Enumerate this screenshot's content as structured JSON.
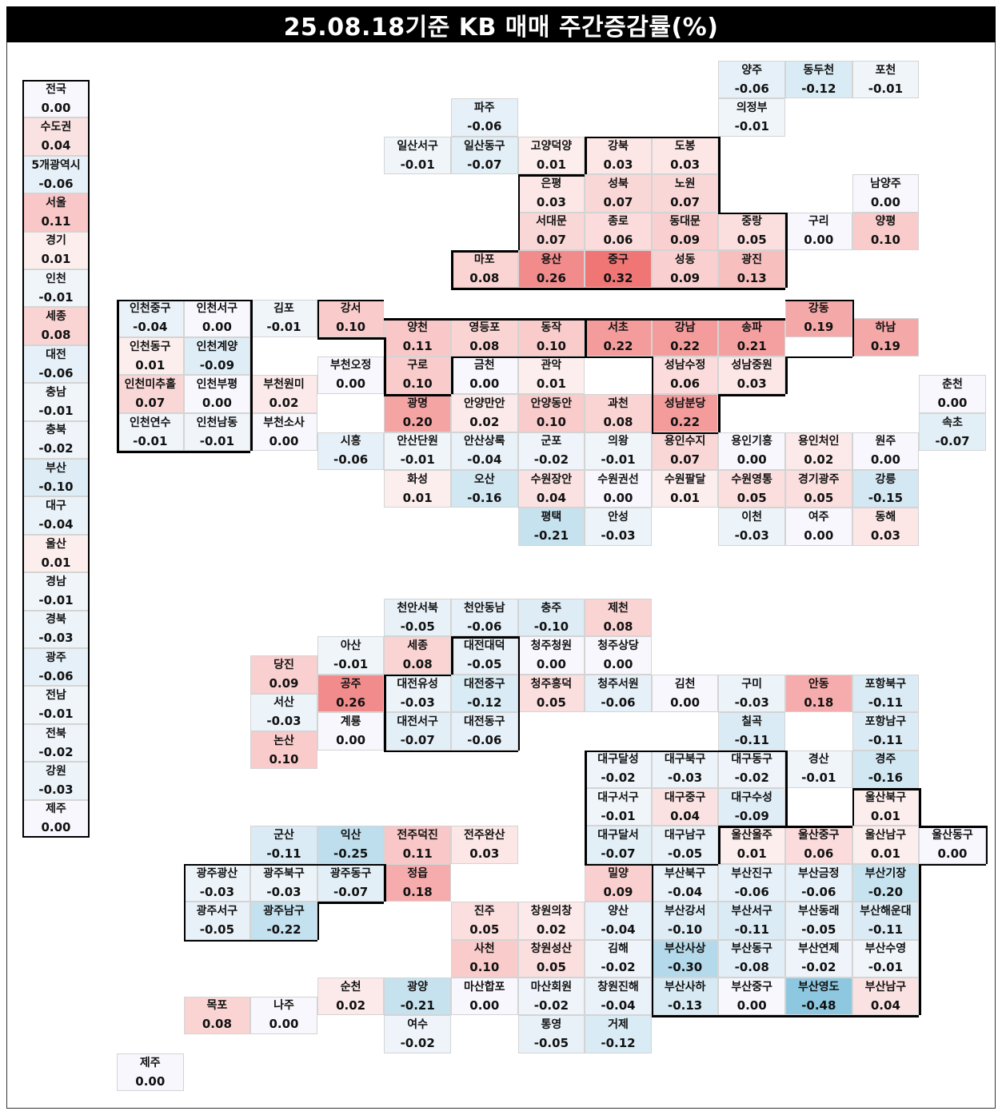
{
  "title": "25.08.18기준 KB 매매 주간증감률(%)",
  "colors": {
    "neg_strong": "#8ec8e0",
    "pos_strong": "#f07575",
    "neutral": "#f7f7fd"
  },
  "chart_data": {
    "type": "heatmap",
    "title": "25.08.18기준 KB 매매 주간증감률(%)",
    "summary": [
      {
        "name": "전국",
        "value": 0.0
      },
      {
        "name": "수도권",
        "value": 0.04
      },
      {
        "name": "5개광역시",
        "value": -0.06
      },
      {
        "name": "서울",
        "value": 0.11
      },
      {
        "name": "경기",
        "value": 0.01
      },
      {
        "name": "인천",
        "value": -0.01
      },
      {
        "name": "세종",
        "value": 0.08
      },
      {
        "name": "대전",
        "value": -0.06
      },
      {
        "name": "충남",
        "value": -0.01
      },
      {
        "name": "충북",
        "value": -0.02
      },
      {
        "name": "부산",
        "value": -0.1
      },
      {
        "name": "대구",
        "value": -0.04
      },
      {
        "name": "울산",
        "value": 0.01
      },
      {
        "name": "경남",
        "value": -0.01
      },
      {
        "name": "경북",
        "value": -0.03
      },
      {
        "name": "광주",
        "value": -0.06
      },
      {
        "name": "전남",
        "value": -0.01
      },
      {
        "name": "전북",
        "value": -0.02
      },
      {
        "name": "강원",
        "value": -0.03
      },
      {
        "name": "제주",
        "value": 0.0
      }
    ],
    "regions": [
      {
        "name": "양주",
        "value": -0.06,
        "col": 9,
        "row": 0
      },
      {
        "name": "동두천",
        "value": -0.12,
        "col": 10,
        "row": 0
      },
      {
        "name": "포천",
        "value": -0.01,
        "col": 11,
        "row": 0
      },
      {
        "name": "파주",
        "value": -0.06,
        "col": 5,
        "row": 1
      },
      {
        "name": "의정부",
        "value": -0.01,
        "col": 9,
        "row": 1
      },
      {
        "name": "일산서구",
        "value": -0.01,
        "col": 4,
        "row": 2
      },
      {
        "name": "일산동구",
        "value": -0.07,
        "col": 5,
        "row": 2
      },
      {
        "name": "고양덕양",
        "value": 0.01,
        "col": 6,
        "row": 2
      },
      {
        "name": "강북",
        "value": 0.03,
        "col": 7,
        "row": 2
      },
      {
        "name": "도봉",
        "value": 0.03,
        "col": 8,
        "row": 2
      },
      {
        "name": "은평",
        "value": 0.03,
        "col": 6,
        "row": 3
      },
      {
        "name": "성북",
        "value": 0.07,
        "col": 7,
        "row": 3
      },
      {
        "name": "노원",
        "value": 0.07,
        "col": 8,
        "row": 3
      },
      {
        "name": "남양주",
        "value": 0.0,
        "col": 11,
        "row": 3
      },
      {
        "name": "서대문",
        "value": 0.07,
        "col": 6,
        "row": 4
      },
      {
        "name": "종로",
        "value": 0.06,
        "col": 7,
        "row": 4
      },
      {
        "name": "동대문",
        "value": 0.09,
        "col": 8,
        "row": 4
      },
      {
        "name": "중랑",
        "value": 0.05,
        "col": 9,
        "row": 4
      },
      {
        "name": "구리",
        "value": 0.0,
        "col": 10,
        "row": 4
      },
      {
        "name": "양평",
        "value": 0.1,
        "col": 11,
        "row": 4
      },
      {
        "name": "마포",
        "value": 0.08,
        "col": 5,
        "row": 5
      },
      {
        "name": "용산",
        "value": 0.26,
        "col": 6,
        "row": 5
      },
      {
        "name": "중구",
        "value": 0.32,
        "col": 7,
        "row": 5
      },
      {
        "name": "성동",
        "value": 0.09,
        "col": 8,
        "row": 5
      },
      {
        "name": "광진",
        "value": 0.13,
        "col": 9,
        "row": 5
      },
      {
        "name": "인천중구",
        "value": -0.04,
        "col": 0,
        "row": 6.3
      },
      {
        "name": "인천서구",
        "value": 0.0,
        "col": 1,
        "row": 6.3
      },
      {
        "name": "김포",
        "value": -0.01,
        "col": 2,
        "row": 6.3
      },
      {
        "name": "강서",
        "value": 0.1,
        "col": 3,
        "row": 6.3
      },
      {
        "name": "강동",
        "value": 0.19,
        "col": 10,
        "row": 6.3
      },
      {
        "name": "양천",
        "value": 0.11,
        "col": 4,
        "row": 6.8
      },
      {
        "name": "영등포",
        "value": 0.08,
        "col": 5,
        "row": 6.8
      },
      {
        "name": "동작",
        "value": 0.1,
        "col": 6,
        "row": 6.8
      },
      {
        "name": "서초",
        "value": 0.22,
        "col": 7,
        "row": 6.8
      },
      {
        "name": "강남",
        "value": 0.22,
        "col": 8,
        "row": 6.8
      },
      {
        "name": "송파",
        "value": 0.21,
        "col": 9,
        "row": 6.8
      },
      {
        "name": "하남",
        "value": 0.19,
        "col": 11,
        "row": 6.8
      },
      {
        "name": "인천동구",
        "value": 0.01,
        "col": 0,
        "row": 7.3
      },
      {
        "name": "인천계양",
        "value": -0.09,
        "col": 1,
        "row": 7.3
      },
      {
        "name": "부천오정",
        "value": 0.0,
        "col": 3,
        "row": 7.8
      },
      {
        "name": "구로",
        "value": 0.1,
        "col": 4,
        "row": 7.8
      },
      {
        "name": "금천",
        "value": 0.0,
        "col": 5,
        "row": 7.8
      },
      {
        "name": "관악",
        "value": 0.01,
        "col": 6,
        "row": 7.8
      },
      {
        "name": "성남수정",
        "value": 0.06,
        "col": 8,
        "row": 7.8
      },
      {
        "name": "성남중원",
        "value": 0.03,
        "col": 9,
        "row": 7.8
      },
      {
        "name": "인천미추홀",
        "value": 0.07,
        "col": 0,
        "row": 8.3
      },
      {
        "name": "인천부평",
        "value": 0.0,
        "col": 1,
        "row": 8.3
      },
      {
        "name": "부천원미",
        "value": 0.02,
        "col": 2,
        "row": 8.3
      },
      {
        "name": "춘천",
        "value": 0.0,
        "col": 12,
        "row": 8.3
      },
      {
        "name": "광명",
        "value": 0.2,
        "col": 4,
        "row": 8.8
      },
      {
        "name": "안양만안",
        "value": 0.02,
        "col": 5,
        "row": 8.8
      },
      {
        "name": "안양동안",
        "value": 0.1,
        "col": 6,
        "row": 8.8
      },
      {
        "name": "과천",
        "value": 0.08,
        "col": 7,
        "row": 8.8
      },
      {
        "name": "성남분당",
        "value": 0.22,
        "col": 8,
        "row": 8.8
      },
      {
        "name": "인천연수",
        "value": -0.01,
        "col": 0,
        "row": 9.3
      },
      {
        "name": "인천남동",
        "value": -0.01,
        "col": 1,
        "row": 9.3
      },
      {
        "name": "부천소사",
        "value": 0.0,
        "col": 2,
        "row": 9.3
      },
      {
        "name": "속초",
        "value": -0.07,
        "col": 12,
        "row": 9.3
      },
      {
        "name": "시흥",
        "value": -0.06,
        "col": 3,
        "row": 9.8
      },
      {
        "name": "안산단원",
        "value": -0.01,
        "col": 4,
        "row": 9.8
      },
      {
        "name": "안산상록",
        "value": -0.04,
        "col": 5,
        "row": 9.8
      },
      {
        "name": "군포",
        "value": -0.02,
        "col": 6,
        "row": 9.8
      },
      {
        "name": "의왕",
        "value": -0.01,
        "col": 7,
        "row": 9.8
      },
      {
        "name": "용인수지",
        "value": 0.07,
        "col": 8,
        "row": 9.8
      },
      {
        "name": "용인기흥",
        "value": 0.0,
        "col": 9,
        "row": 9.8
      },
      {
        "name": "용인처인",
        "value": 0.02,
        "col": 10,
        "row": 9.8
      },
      {
        "name": "원주",
        "value": 0.0,
        "col": 11,
        "row": 9.8
      },
      {
        "name": "화성",
        "value": 0.01,
        "col": 4,
        "row": 10.8
      },
      {
        "name": "오산",
        "value": -0.16,
        "col": 5,
        "row": 10.8
      },
      {
        "name": "수원장안",
        "value": 0.04,
        "col": 6,
        "row": 10.8
      },
      {
        "name": "수원권선",
        "value": 0.0,
        "col": 7,
        "row": 10.8
      },
      {
        "name": "수원팔달",
        "value": 0.01,
        "col": 8,
        "row": 10.8
      },
      {
        "name": "수원영통",
        "value": 0.05,
        "col": 9,
        "row": 10.8
      },
      {
        "name": "경기광주",
        "value": 0.05,
        "col": 10,
        "row": 10.8
      },
      {
        "name": "강릉",
        "value": -0.15,
        "col": 11,
        "row": 10.8
      },
      {
        "name": "평택",
        "value": -0.21,
        "col": 6,
        "row": 11.8
      },
      {
        "name": "안성",
        "value": -0.03,
        "col": 7,
        "row": 11.8
      },
      {
        "name": "이천",
        "value": -0.03,
        "col": 9,
        "row": 11.8
      },
      {
        "name": "여주",
        "value": 0.0,
        "col": 10,
        "row": 11.8
      },
      {
        "name": "동해",
        "value": 0.03,
        "col": 11,
        "row": 11.8
      },
      {
        "name": "천안서북",
        "value": -0.05,
        "col": 4,
        "row": 14.2
      },
      {
        "name": "천안동남",
        "value": -0.06,
        "col": 5,
        "row": 14.2
      },
      {
        "name": "충주",
        "value": -0.1,
        "col": 6,
        "row": 14.2
      },
      {
        "name": "제천",
        "value": 0.08,
        "col": 7,
        "row": 14.2
      },
      {
        "name": "아산",
        "value": -0.01,
        "col": 3,
        "row": 15.2
      },
      {
        "name": "세종",
        "value": 0.08,
        "col": 4,
        "row": 15.2
      },
      {
        "name": "대전대덕",
        "value": -0.05,
        "col": 5,
        "row": 15.2
      },
      {
        "name": "청주청원",
        "value": 0.0,
        "col": 6,
        "row": 15.2
      },
      {
        "name": "청주상당",
        "value": 0.0,
        "col": 7,
        "row": 15.2
      },
      {
        "name": "당진",
        "value": 0.09,
        "col": 2,
        "row": 15.7
      },
      {
        "name": "공주",
        "value": 0.26,
        "col": 3,
        "row": 16.2
      },
      {
        "name": "대전유성",
        "value": -0.03,
        "col": 4,
        "row": 16.2
      },
      {
        "name": "대전중구",
        "value": -0.12,
        "col": 5,
        "row": 16.2
      },
      {
        "name": "청주흥덕",
        "value": 0.05,
        "col": 6,
        "row": 16.2
      },
      {
        "name": "청주서원",
        "value": -0.06,
        "col": 7,
        "row": 16.2
      },
      {
        "name": "김천",
        "value": 0.0,
        "col": 8,
        "row": 16.2
      },
      {
        "name": "구미",
        "value": -0.03,
        "col": 9,
        "row": 16.2
      },
      {
        "name": "안동",
        "value": 0.18,
        "col": 10,
        "row": 16.2
      },
      {
        "name": "포항북구",
        "value": -0.11,
        "col": 11,
        "row": 16.2
      },
      {
        "name": "서산",
        "value": -0.03,
        "col": 2,
        "row": 16.7
      },
      {
        "name": "계룡",
        "value": 0.0,
        "col": 3,
        "row": 17.2
      },
      {
        "name": "대전서구",
        "value": -0.07,
        "col": 4,
        "row": 17.2
      },
      {
        "name": "대전동구",
        "value": -0.06,
        "col": 5,
        "row": 17.2
      },
      {
        "name": "칠곡",
        "value": -0.11,
        "col": 9,
        "row": 17.2
      },
      {
        "name": "포항남구",
        "value": -0.11,
        "col": 11,
        "row": 17.2
      },
      {
        "name": "논산",
        "value": 0.1,
        "col": 2,
        "row": 17.7
      },
      {
        "name": "대구달성",
        "value": -0.02,
        "col": 7,
        "row": 18.2
      },
      {
        "name": "대구북구",
        "value": -0.03,
        "col": 8,
        "row": 18.2
      },
      {
        "name": "대구동구",
        "value": -0.02,
        "col": 9,
        "row": 18.2
      },
      {
        "name": "경산",
        "value": -0.01,
        "col": 10,
        "row": 18.2
      },
      {
        "name": "경주",
        "value": -0.16,
        "col": 11,
        "row": 18.2
      },
      {
        "name": "대구서구",
        "value": -0.01,
        "col": 7,
        "row": 19.2
      },
      {
        "name": "대구중구",
        "value": 0.04,
        "col": 8,
        "row": 19.2
      },
      {
        "name": "대구수성",
        "value": -0.09,
        "col": 9,
        "row": 19.2
      },
      {
        "name": "울산북구",
        "value": 0.01,
        "col": 11,
        "row": 19.2
      },
      {
        "name": "군산",
        "value": -0.11,
        "col": 2,
        "row": 20.2
      },
      {
        "name": "익산",
        "value": -0.25,
        "col": 3,
        "row": 20.2
      },
      {
        "name": "전주덕진",
        "value": 0.11,
        "col": 4,
        "row": 20.2
      },
      {
        "name": "전주완산",
        "value": 0.03,
        "col": 5,
        "row": 20.2
      },
      {
        "name": "대구달서",
        "value": -0.07,
        "col": 7,
        "row": 20.2
      },
      {
        "name": "대구남구",
        "value": -0.05,
        "col": 8,
        "row": 20.2
      },
      {
        "name": "울산울주",
        "value": 0.01,
        "col": 9,
        "row": 20.2
      },
      {
        "name": "울산중구",
        "value": 0.06,
        "col": 10,
        "row": 20.2
      },
      {
        "name": "울산남구",
        "value": 0.01,
        "col": 11,
        "row": 20.2
      },
      {
        "name": "울산동구",
        "value": 0.0,
        "col": 12,
        "row": 20.2
      },
      {
        "name": "광주광산",
        "value": -0.03,
        "col": 1,
        "row": 21.2
      },
      {
        "name": "광주북구",
        "value": -0.03,
        "col": 2,
        "row": 21.2
      },
      {
        "name": "광주동구",
        "value": -0.07,
        "col": 3,
        "row": 21.2
      },
      {
        "name": "정읍",
        "value": 0.18,
        "col": 4,
        "row": 21.2
      },
      {
        "name": "밀양",
        "value": 0.09,
        "col": 7,
        "row": 21.2
      },
      {
        "name": "부산북구",
        "value": -0.04,
        "col": 8,
        "row": 21.2
      },
      {
        "name": "부산진구",
        "value": -0.06,
        "col": 9,
        "row": 21.2
      },
      {
        "name": "부산금정",
        "value": -0.06,
        "col": 10,
        "row": 21.2
      },
      {
        "name": "부산기장",
        "value": -0.2,
        "col": 11,
        "row": 21.2
      },
      {
        "name": "광주서구",
        "value": -0.05,
        "col": 1,
        "row": 22.2
      },
      {
        "name": "광주남구",
        "value": -0.22,
        "col": 2,
        "row": 22.2
      },
      {
        "name": "진주",
        "value": 0.05,
        "col": 5,
        "row": 22.2
      },
      {
        "name": "창원의창",
        "value": 0.02,
        "col": 6,
        "row": 22.2
      },
      {
        "name": "양산",
        "value": -0.04,
        "col": 7,
        "row": 22.2
      },
      {
        "name": "부산강서",
        "value": -0.1,
        "col": 8,
        "row": 22.2
      },
      {
        "name": "부산서구",
        "value": -0.11,
        "col": 9,
        "row": 22.2
      },
      {
        "name": "부산동래",
        "value": -0.05,
        "col": 10,
        "row": 22.2
      },
      {
        "name": "부산해운대",
        "value": -0.11,
        "col": 11,
        "row": 22.2
      },
      {
        "name": "사천",
        "value": 0.1,
        "col": 5,
        "row": 23.2
      },
      {
        "name": "창원성산",
        "value": 0.05,
        "col": 6,
        "row": 23.2
      },
      {
        "name": "김해",
        "value": -0.02,
        "col": 7,
        "row": 23.2
      },
      {
        "name": "부산사상",
        "value": -0.3,
        "col": 8,
        "row": 23.2
      },
      {
        "name": "부산동구",
        "value": -0.08,
        "col": 9,
        "row": 23.2
      },
      {
        "name": "부산연제",
        "value": -0.02,
        "col": 10,
        "row": 23.2
      },
      {
        "name": "부산수영",
        "value": -0.01,
        "col": 11,
        "row": 23.2
      },
      {
        "name": "순천",
        "value": 0.02,
        "col": 3,
        "row": 24.2
      },
      {
        "name": "광양",
        "value": -0.21,
        "col": 4,
        "row": 24.2
      },
      {
        "name": "마산합포",
        "value": 0.0,
        "col": 5,
        "row": 24.2
      },
      {
        "name": "마산회원",
        "value": -0.02,
        "col": 6,
        "row": 24.2
      },
      {
        "name": "창원진해",
        "value": -0.04,
        "col": 7,
        "row": 24.2
      },
      {
        "name": "부산사하",
        "value": -0.13,
        "col": 8,
        "row": 24.2
      },
      {
        "name": "부산중구",
        "value": 0.0,
        "col": 9,
        "row": 24.2
      },
      {
        "name": "부산영도",
        "value": -0.48,
        "col": 10,
        "row": 24.2
      },
      {
        "name": "부산남구",
        "value": 0.04,
        "col": 11,
        "row": 24.2
      },
      {
        "name": "목포",
        "value": 0.08,
        "col": 1,
        "row": 24.7
      },
      {
        "name": "나주",
        "value": 0.0,
        "col": 2,
        "row": 24.7
      },
      {
        "name": "여수",
        "value": -0.02,
        "col": 4,
        "row": 25.2
      },
      {
        "name": "통영",
        "value": -0.05,
        "col": 6,
        "row": 25.2
      },
      {
        "name": "거제",
        "value": -0.12,
        "col": 7,
        "row": 25.2
      },
      {
        "name": "제주",
        "value": 0.0,
        "col": 0,
        "row": 26.2
      }
    ]
  }
}
